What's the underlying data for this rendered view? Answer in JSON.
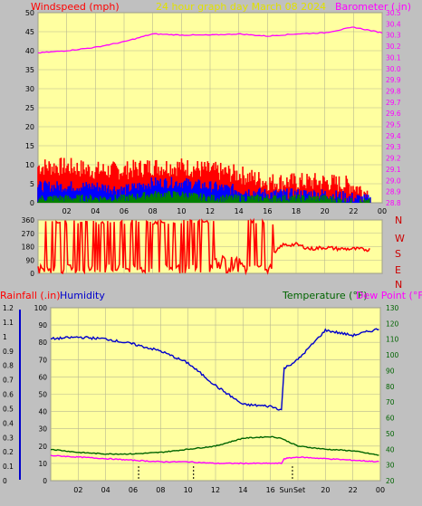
{
  "header": {
    "left_title": "Windspeed (mph)",
    "center_title": "24 hour graph day   March 08 2024",
    "right_title": "Barometer (.in)"
  },
  "colors": {
    "background": "#c0c0c0",
    "plot_bg": "#ffffa0",
    "grid": "#b8b890",
    "wind_gust": "#ff0000",
    "wind_avg": "#0000ff",
    "wind_low": "#008000",
    "barometer": "#ff00ff",
    "direction": "#ff0000",
    "humidity": "#0000cc",
    "temperature": "#006400",
    "dew_point": "#ff00ff",
    "rainfall": "#0000cc",
    "left_axis_text": "#000000",
    "right_axis_magenta": "#ff00ff",
    "right_axis_green": "#006400",
    "compass_red": "#cc0000"
  },
  "x_ticks": [
    "02",
    "04",
    "06",
    "08",
    "10",
    "12",
    "14",
    "16",
    "18",
    "20",
    "22",
    "00"
  ],
  "x_ticks_bottom": [
    "02",
    "04",
    "06",
    "08",
    "10",
    "12",
    "14",
    "16",
    "Sun",
    "Set",
    "20",
    "22",
    "00"
  ],
  "compass": [
    "N",
    "W",
    "S",
    "E",
    "N"
  ],
  "chart_data": [
    {
      "type": "line",
      "name": "wind-barometer",
      "left_axis": {
        "label": "Windspeed (mph)",
        "range": [
          0,
          50
        ],
        "ticks": [
          0,
          5,
          10,
          15,
          20,
          25,
          30,
          35,
          40,
          45,
          50
        ]
      },
      "right_axis": {
        "label": "Barometer (.in)",
        "range": [
          28.8,
          30.5
        ],
        "ticks": [
          "28.8",
          "28.9",
          "29.0",
          "29.1",
          "29.2",
          "29.3",
          "29.4",
          "29.5",
          "29.6",
          "29.7",
          "29.8",
          "29.9",
          "30.0",
          "30.1",
          "30.2",
          "30.3",
          "30.4",
          "30.5"
        ]
      },
      "x_hours": [
        0,
        2,
        4,
        6,
        8,
        10,
        12,
        14,
        16,
        18,
        20,
        22,
        24
      ],
      "barometer": [
        30.14,
        30.16,
        30.19,
        30.24,
        30.31,
        30.3,
        30.3,
        30.31,
        30.29,
        30.31,
        30.32,
        30.37,
        30.32
      ],
      "wind_gust": [
        9,
        9,
        8,
        8,
        9,
        9,
        8,
        7,
        5,
        5,
        5,
        4,
        0
      ],
      "wind_avg": [
        4,
        4,
        4,
        3,
        5,
        5,
        4,
        3,
        2,
        2,
        2,
        1,
        0
      ],
      "wind_low": [
        1,
        1,
        1,
        1,
        2,
        2,
        1,
        1,
        1,
        1,
        1,
        0,
        0
      ],
      "grid": true
    },
    {
      "type": "line",
      "name": "wind-direction",
      "left_axis": {
        "range": [
          0,
          360
        ],
        "ticks": [
          0,
          90,
          180,
          270,
          360
        ]
      },
      "right_axis_labels": [
        "N",
        "W",
        "S",
        "E",
        "N"
      ],
      "x_hours": [
        0,
        2,
        4,
        6,
        8,
        10,
        12,
        14,
        16,
        16.5,
        17,
        18,
        19,
        20,
        21,
        22,
        23
      ],
      "direction": [
        340,
        20,
        340,
        30,
        340,
        20,
        340,
        60,
        200,
        130,
        190,
        195,
        165,
        175,
        165,
        165,
        160
      ],
      "grid": true
    },
    {
      "type": "line",
      "name": "humidity-temperature",
      "legend": [
        "Rainfall (.in)",
        "Humidity",
        "Temperature (°F)",
        "Dew Point (°F)"
      ],
      "left_axis_rain": {
        "range": [
          0,
          1.2
        ],
        "ticks": [
          "0",
          "0.1",
          "0.2",
          "0.3",
          "0.4",
          "0.5",
          "0.6",
          "0.7",
          "0.8",
          "0.9",
          "1",
          "1.1",
          "1.2"
        ]
      },
      "left_axis_humidity": {
        "range": [
          0,
          100
        ],
        "ticks": [
          0,
          10,
          20,
          30,
          40,
          50,
          60,
          70,
          80,
          90,
          100
        ]
      },
      "right_axis": {
        "range": [
          20,
          130
        ],
        "ticks": [
          20,
          30,
          40,
          50,
          60,
          70,
          80,
          90,
          100,
          110,
          120,
          130
        ]
      },
      "x_hours": [
        0,
        2,
        4,
        6,
        8,
        10,
        12,
        14,
        16,
        16.8,
        17,
        18,
        20,
        22,
        24
      ],
      "humidity": [
        82,
        83,
        82,
        79,
        75,
        68,
        55,
        44,
        43,
        41,
        65,
        70,
        87,
        84,
        88
      ],
      "temperature": [
        40,
        38,
        37,
        37,
        38,
        40,
        42,
        47,
        48,
        47,
        46,
        42,
        40,
        39,
        36
      ],
      "dew_point": [
        36,
        35,
        34,
        33,
        32,
        32,
        31,
        31,
        31,
        31,
        34,
        35,
        34,
        33,
        32
      ],
      "rainfall": [
        0,
        0,
        0,
        0,
        0,
        0,
        0,
        0,
        0,
        0,
        0,
        0,
        0,
        0,
        0
      ],
      "sun_set_hour": 17.6,
      "grid": true
    }
  ]
}
